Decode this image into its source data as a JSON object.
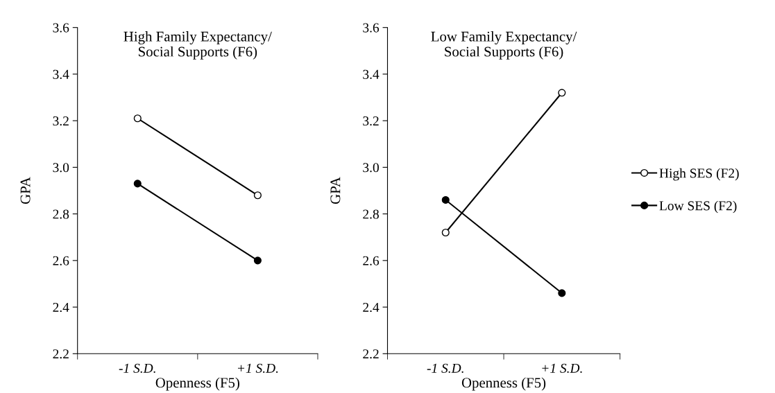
{
  "chart_data": [
    {
      "type": "line",
      "title": "High Family Expectancy/\nSocial Supports (F6)",
      "xlabel": "Openness (F5)",
      "ylabel": "GPA",
      "categories": [
        "-1 S.D.",
        "+1 S.D."
      ],
      "ylim": [
        2.2,
        3.6
      ],
      "yticks": [
        2.2,
        2.4,
        2.6,
        2.8,
        {
          "value": 3,
          "label": "3.0"
        },
        3.2,
        3.4,
        3.6
      ],
      "marker": "circle",
      "series": [
        {
          "color": "#ffffff",
          "values": [
            3.21,
            2.88
          ]
        },
        {
          "color": "#000000",
          "values": [
            2.93,
            2.6
          ]
        }
      ]
    },
    {
      "type": "line",
      "title": "Low Family Expectancy/\nSocial Supports (F6)",
      "xlabel": "Openness (F5)",
      "ylabel": "GPA",
      "categories": [
        "-1 S.D.",
        "+1 S.D."
      ],
      "ylim": [
        2.2,
        3.6
      ],
      "yticks": [
        2.2,
        2.4,
        2.6,
        2.8,
        {
          "value": 3,
          "label": "3.0"
        },
        3.2,
        3.4,
        3.6
      ],
      "marker": "circle",
      "legend": "right",
      "series": [
        {
          "name": "High SES (F2)",
          "color": "#ffffff",
          "values": [
            2.72,
            3.32
          ]
        },
        {
          "name": "Low SES (F2)",
          "color": "#000000",
          "values": [
            2.86,
            2.46
          ]
        }
      ]
    }
  ]
}
